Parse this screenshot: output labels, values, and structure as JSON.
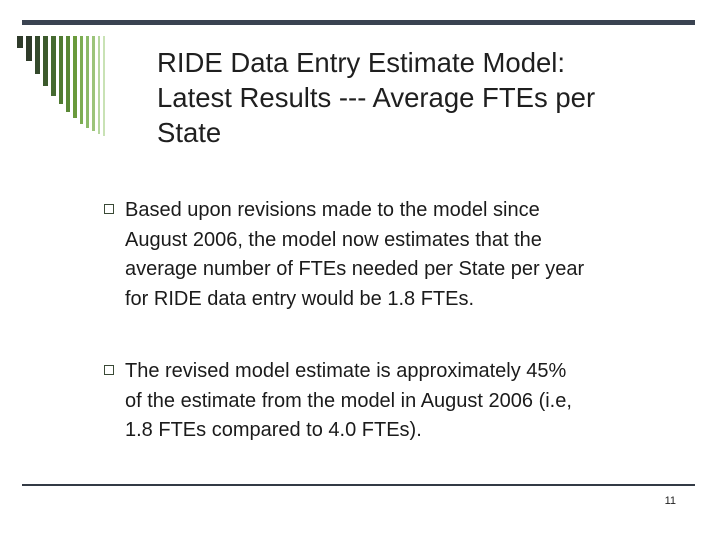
{
  "slide": {
    "title_lines": [
      "RIDE Data Entry Estimate Model:",
      "Latest Results --- Average FTEs per",
      "State"
    ],
    "bullets": [
      {
        "lines": [
          "Based upon revisions made to the model since",
          "August 2006, the model now estimates that the",
          "average number of FTEs needed per State per year",
          "for RIDE data entry would be 1.8 FTEs."
        ]
      },
      {
        "lines": [
          "The revised model estimate is approximately 45%",
          "of the estimate from the model in August 2006 (i.e,",
          "1.8 FTEs compared to 4.0 FTEs)."
        ]
      }
    ],
    "page_number": "11"
  },
  "theme": {
    "rule_color": "#3a4351",
    "stripe_colors": [
      "#2f3b2a",
      "#3c5a2c",
      "#4f7a32",
      "#6a9a3c",
      "#9cc47a",
      "#c9e2b5"
    ],
    "bullet_marker": "hollow-square-icon"
  }
}
